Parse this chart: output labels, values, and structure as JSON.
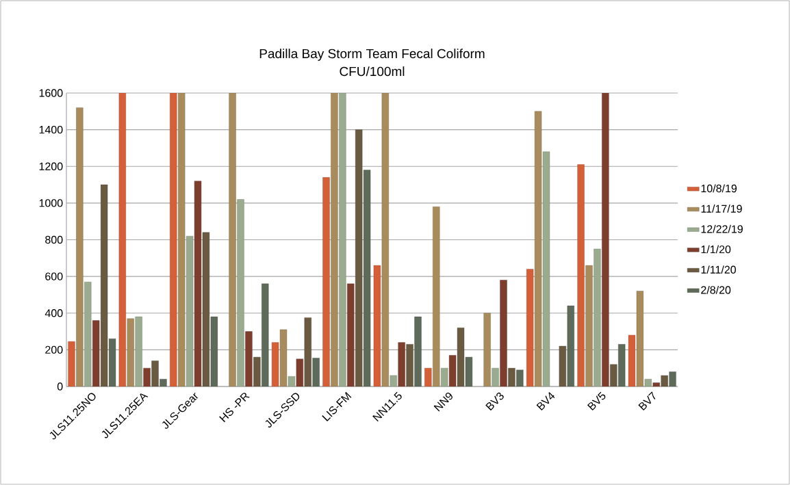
{
  "chart_data": {
    "type": "bar",
    "title": "Padilla Bay Storm Team Fecal Coliform",
    "subtitle": "CFU/100ml",
    "categories": [
      "JLS11.25NO",
      "JLS11.25EA",
      "JLS-Gear",
      "HS -PR",
      "JLS-SSD",
      "LIS-FM",
      "NN11.5",
      "NN9",
      "BV3",
      "BV4",
      "BV5",
      "BV7"
    ],
    "series": [
      {
        "name": "10/8/19",
        "color": "#d4603a",
        "values": [
          245,
          1600,
          1600,
          null,
          240,
          1140,
          660,
          100,
          null,
          640,
          1210,
          280
        ]
      },
      {
        "name": "11/17/19",
        "color": "#a88c5e",
        "values": [
          1520,
          370,
          1600,
          1600,
          310,
          1600,
          1600,
          980,
          400,
          1500,
          660,
          520
        ]
      },
      {
        "name": "12/22/19",
        "color": "#9aab90",
        "values": [
          570,
          380,
          820,
          1020,
          55,
          1600,
          60,
          100,
          100,
          1280,
          750,
          40
        ]
      },
      {
        "name": "1/1/20",
        "color": "#7e3e2e",
        "values": [
          360,
          100,
          1120,
          300,
          150,
          560,
          240,
          170,
          580,
          null,
          1600,
          20
        ]
      },
      {
        "name": "1/11/20",
        "color": "#6a5a42",
        "values": [
          1100,
          140,
          840,
          160,
          375,
          1400,
          230,
          320,
          100,
          220,
          120,
          60
        ]
      },
      {
        "name": "2/8/20",
        "color": "#5e6b5a",
        "values": [
          260,
          40,
          380,
          560,
          155,
          1180,
          380,
          160,
          90,
          440,
          230,
          80
        ]
      }
    ],
    "ylim": [
      0,
      1600
    ],
    "yticks": [
      0,
      200,
      400,
      600,
      800,
      1000,
      1200,
      1400,
      1600
    ],
    "grid": "y",
    "legend": "right"
  }
}
